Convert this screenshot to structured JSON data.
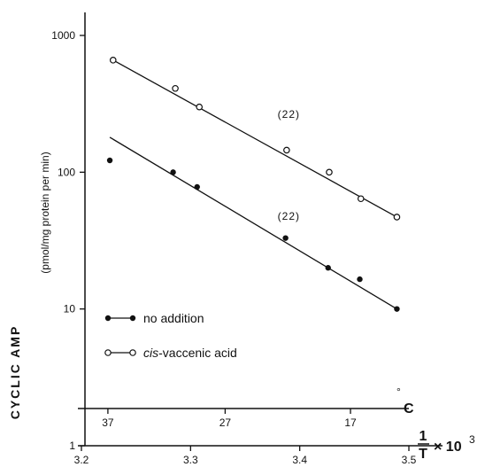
{
  "chart_data": {
    "type": "scatter",
    "title": "",
    "y_scale": "log",
    "ylim": [
      1,
      1000
    ],
    "xlim": [
      3.2,
      3.5
    ],
    "x_ticks": [
      "3.2",
      "3.3",
      "3.4",
      "3.5"
    ],
    "y_ticks": [
      "1",
      "10",
      "100",
      "1000"
    ],
    "ylabel": {
      "main": "CYCLIC AMP",
      "units": "(pmol/mg protein per min)"
    },
    "xlabel": {
      "numerator": "1",
      "denominator": "T",
      "multiplier": "× 10",
      "exponent": "3"
    },
    "temp_axis": {
      "unit_symbol": "°",
      "unit_letter": "C",
      "ticks": [
        {
          "label": "37",
          "value": 37
        },
        {
          "label": "27",
          "value": 27
        },
        {
          "label": "17",
          "value": 17
        }
      ]
    },
    "series": [
      {
        "name": "no addition",
        "marker": "filled",
        "points": [
          {
            "x": 3.226,
            "y": 122
          },
          {
            "x": 3.284,
            "y": 100
          },
          {
            "x": 3.306,
            "y": 78
          },
          {
            "x": 3.387,
            "y": 33
          },
          {
            "x": 3.426,
            "y": 20
          },
          {
            "x": 3.455,
            "y": 16.5
          },
          {
            "x": 3.489,
            "y": 10
          }
        ],
        "fit": [
          {
            "x": 3.226,
            "y": 180
          },
          {
            "x": 3.489,
            "y": 10
          }
        ],
        "annotation": "(22)",
        "annotation_pos": {
          "x": 3.39,
          "y": 45
        }
      },
      {
        "name": "cis-vaccenic acid",
        "marker": "open",
        "points": [
          {
            "x": 3.229,
            "y": 660
          },
          {
            "x": 3.286,
            "y": 410
          },
          {
            "x": 3.308,
            "y": 300
          },
          {
            "x": 3.388,
            "y": 145
          },
          {
            "x": 3.427,
            "y": 100
          },
          {
            "x": 3.456,
            "y": 64
          },
          {
            "x": 3.489,
            "y": 47
          }
        ],
        "fit": [
          {
            "x": 3.229,
            "y": 660
          },
          {
            "x": 3.489,
            "y": 47
          }
        ],
        "annotation": "(22)",
        "annotation_pos": {
          "x": 3.39,
          "y": 250
        }
      }
    ],
    "legend": [
      {
        "label": "no addition",
        "marker": "filled"
      },
      {
        "label_italic": "cis",
        "label_rest": "-vaccenic acid",
        "marker": "open"
      }
    ]
  }
}
